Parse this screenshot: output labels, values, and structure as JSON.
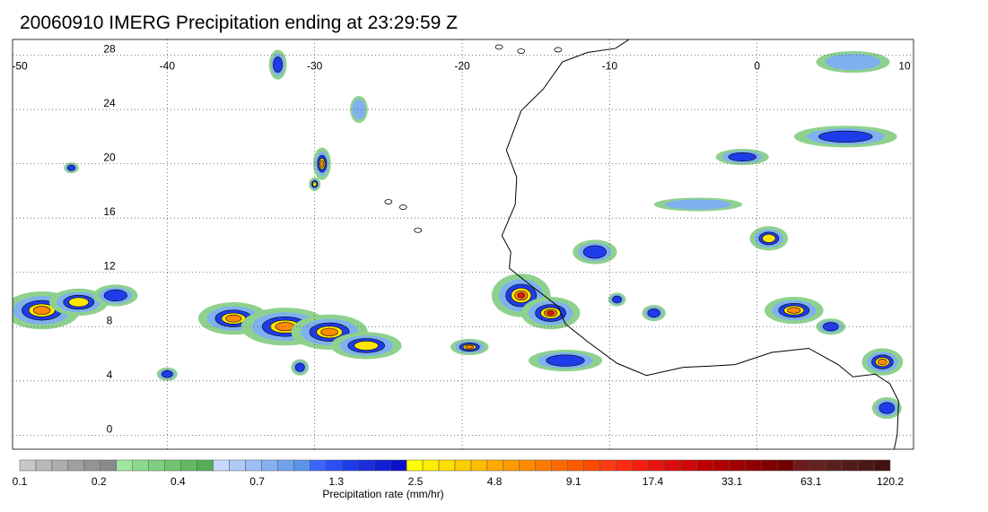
{
  "title": "20060910 IMERG Precipitation ending at 23:29:59 Z",
  "map": {
    "lon_range": [
      -50,
      10
    ],
    "lat_range": [
      -1,
      30.5
    ],
    "lon_ticks": [
      -50,
      -40,
      -30,
      -20,
      -10,
      0,
      10
    ],
    "lat_ticks": [
      0,
      4,
      8,
      12,
      16,
      20,
      24,
      28
    ],
    "lon_tick_labels": [
      "-50",
      "-40",
      "-30",
      "-20",
      "-10",
      "0",
      "10"
    ],
    "lat_tick_labels": [
      "0",
      "4",
      "8",
      "12",
      "16",
      "20",
      "24",
      "28"
    ],
    "grid": "dotted"
  },
  "colorbar": {
    "label": "Precipitation rate (mm/hr)",
    "tick_labels": [
      "0.1",
      "0.2",
      "0.4",
      "0.7",
      "1.3",
      "2.5",
      "4.8",
      "9.1",
      "17.4",
      "33.1",
      "63.1",
      "120.2"
    ],
    "colors": [
      "#c8c8c8",
      "#b9b9b9",
      "#adadad",
      "#a0a0a0",
      "#949494",
      "#8a8a8a",
      "#a0e6a0",
      "#8cd98c",
      "#7ecf7e",
      "#70c470",
      "#62b962",
      "#55ae55",
      "#c6d8ff",
      "#b0cbfa",
      "#9bbef5",
      "#86b0f0",
      "#70a2ec",
      "#5a94e8",
      "#3a66ff",
      "#2a50f5",
      "#1f3cea",
      "#1a2ee0",
      "#0f1fd6",
      "#0a10cc",
      "#ffff00",
      "#ffee00",
      "#ffde00",
      "#ffcc00",
      "#ffbb00",
      "#ffaa00",
      "#ff9a00",
      "#ff8a00",
      "#ff7a00",
      "#ff6a00",
      "#ff5a00",
      "#ff4a00",
      "#ff3a10",
      "#ff2a10",
      "#f51e10",
      "#e81410",
      "#dc0c0c",
      "#d00808",
      "#c00000",
      "#b00000",
      "#a00000",
      "#900000",
      "#800000",
      "#720000",
      "#6e1a1a",
      "#652020",
      "#5c1f1f",
      "#531a1a",
      "#4a1616",
      "#421212"
    ]
  },
  "rain_cells": [
    {
      "lon": -48.5,
      "lat": 9.2,
      "rx": 2.6,
      "ry": 1.4,
      "level": 4
    },
    {
      "lon": -46.0,
      "lat": 9.8,
      "rx": 2.0,
      "ry": 1.0,
      "level": 3
    },
    {
      "lon": -43.5,
      "lat": 10.3,
      "rx": 1.5,
      "ry": 0.8,
      "level": 2
    },
    {
      "lon": -35.5,
      "lat": 8.6,
      "rx": 2.4,
      "ry": 1.2,
      "level": 4
    },
    {
      "lon": -32.0,
      "lat": 8.0,
      "rx": 3.0,
      "ry": 1.4,
      "level": 4
    },
    {
      "lon": -29.0,
      "lat": 7.6,
      "rx": 2.6,
      "ry": 1.3,
      "level": 4
    },
    {
      "lon": -26.5,
      "lat": 6.6,
      "rx": 2.4,
      "ry": 1.0,
      "level": 3
    },
    {
      "lon": -31.0,
      "lat": 5.0,
      "rx": 0.6,
      "ry": 0.6,
      "level": 2
    },
    {
      "lon": -40.0,
      "lat": 4.5,
      "rx": 0.7,
      "ry": 0.5,
      "level": 2
    },
    {
      "lon": -29.5,
      "lat": 20.0,
      "rx": 0.6,
      "ry": 1.2,
      "level": 4
    },
    {
      "lon": -30.0,
      "lat": 18.5,
      "rx": 0.4,
      "ry": 0.5,
      "level": 3
    },
    {
      "lon": -27.0,
      "lat": 24.0,
      "rx": 0.6,
      "ry": 1.0,
      "level": 1
    },
    {
      "lon": -32.5,
      "lat": 27.3,
      "rx": 0.6,
      "ry": 1.1,
      "level": 2
    },
    {
      "lon": -46.5,
      "lat": 19.7,
      "rx": 0.5,
      "ry": 0.4,
      "level": 2
    },
    {
      "lon": -19.5,
      "lat": 6.5,
      "rx": 1.3,
      "ry": 0.6,
      "level": 4
    },
    {
      "lon": -16.0,
      "lat": 10.3,
      "rx": 2.0,
      "ry": 1.6,
      "level": 5
    },
    {
      "lon": -14.0,
      "lat": 9.0,
      "rx": 2.0,
      "ry": 1.2,
      "level": 5
    },
    {
      "lon": -13.0,
      "lat": 5.5,
      "rx": 2.5,
      "ry": 0.8,
      "level": 2
    },
    {
      "lon": -11.0,
      "lat": 13.5,
      "rx": 1.5,
      "ry": 0.9,
      "level": 2
    },
    {
      "lon": -9.5,
      "lat": 10.0,
      "rx": 0.6,
      "ry": 0.5,
      "level": 2
    },
    {
      "lon": -7.0,
      "lat": 9.0,
      "rx": 0.8,
      "ry": 0.6,
      "level": 2
    },
    {
      "lon": 0.8,
      "lat": 14.5,
      "rx": 1.3,
      "ry": 0.9,
      "level": 3
    },
    {
      "lon": 2.5,
      "lat": 9.2,
      "rx": 2.0,
      "ry": 1.0,
      "level": 4
    },
    {
      "lon": 5.0,
      "lat": 8.0,
      "rx": 1.0,
      "ry": 0.6,
      "level": 2
    },
    {
      "lon": 8.5,
      "lat": 5.4,
      "rx": 1.4,
      "ry": 1.0,
      "level": 4
    },
    {
      "lon": 8.8,
      "lat": 2.0,
      "rx": 1.0,
      "ry": 0.8,
      "level": 2
    },
    {
      "lon": 6.0,
      "lat": 22.0,
      "rx": 3.5,
      "ry": 0.8,
      "level": 2
    },
    {
      "lon": -1.0,
      "lat": 20.5,
      "rx": 1.8,
      "ry": 0.6,
      "level": 2
    },
    {
      "lon": -4.0,
      "lat": 17.0,
      "rx": 3.0,
      "ry": 0.5,
      "level": 1
    },
    {
      "lon": 6.5,
      "lat": 27.5,
      "rx": 2.5,
      "ry": 0.8,
      "level": 1
    }
  ]
}
